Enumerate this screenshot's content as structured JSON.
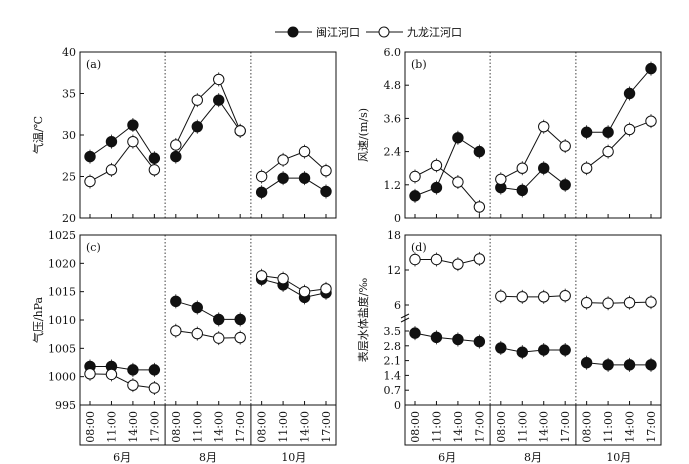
{
  "legend": [
    "闽江河口",
    "九龙江河口"
  ],
  "months": [
    "6月",
    "8月",
    "10月"
  ],
  "times": [
    "08:00",
    "11:00",
    "14:00",
    "17:00"
  ],
  "chart_data": [
    {
      "type": "line",
      "panel": "(a)",
      "ylabel": "气温/℃",
      "ylim": [
        20,
        40
      ],
      "yticks": [
        20,
        25,
        30,
        35,
        40
      ],
      "categories": [
        "6月 08:00",
        "6月 11:00",
        "6月 14:00",
        "6月 17:00",
        "8月 08:00",
        "8月 11:00",
        "8月 14:00",
        "8月 17:00",
        "10月 08:00",
        "10月 11:00",
        "10月 14:00",
        "10月 17:00"
      ],
      "series": [
        {
          "name": "闽江河口",
          "marker": "filled",
          "values": [
            27.4,
            29.2,
            31.2,
            27.2,
            27.4,
            31.0,
            34.2,
            30.5,
            23.1,
            24.8,
            24.8,
            23.2
          ]
        },
        {
          "name": "九龙江河口",
          "marker": "open",
          "values": [
            24.4,
            25.8,
            29.2,
            25.8,
            28.8,
            34.2,
            36.7,
            30.5,
            25.0,
            27.0,
            28.0,
            25.7
          ]
        }
      ]
    },
    {
      "type": "line",
      "panel": "(b)",
      "ylabel": "风速/(m/s)",
      "ylim": [
        0,
        6
      ],
      "yticks": [
        "0",
        "1.2",
        "2.4",
        "3.6",
        "4.8",
        "6.0"
      ],
      "categories": [
        "6月 08:00",
        "6月 11:00",
        "6月 14:00",
        "6月 17:00",
        "8月 08:00",
        "8月 11:00",
        "8月 14:00",
        "8月 17:00",
        "10月 08:00",
        "10月 11:00",
        "10月 14:00",
        "10月 17:00"
      ],
      "series": [
        {
          "name": "闽江河口",
          "marker": "filled",
          "values": [
            0.8,
            1.1,
            2.9,
            2.4,
            1.1,
            1.0,
            1.8,
            1.2,
            3.1,
            3.1,
            4.5,
            5.4
          ]
        },
        {
          "name": "九龙江河口",
          "marker": "open",
          "values": [
            1.5,
            1.9,
            1.3,
            0.4,
            1.4,
            1.8,
            3.3,
            2.6,
            1.8,
            2.4,
            3.2,
            3.5
          ]
        }
      ]
    },
    {
      "type": "line",
      "panel": "(c)",
      "ylabel": "气压/hPa",
      "ylim": [
        995,
        1025
      ],
      "yticks": [
        995,
        1000,
        1005,
        1010,
        1015,
        1020,
        1025
      ],
      "categories": [
        "6月 08:00",
        "6月 11:00",
        "6月 14:00",
        "6月 17:00",
        "8月 08:00",
        "8月 11:00",
        "8月 14:00",
        "8月 17:00",
        "10月 08:00",
        "10月 11:00",
        "10月 14:00",
        "10月 17:00"
      ],
      "series": [
        {
          "name": "闽江河口",
          "marker": "filled",
          "values": [
            1001.8,
            1001.8,
            1001.2,
            1001.2,
            1013.3,
            1012.2,
            1010.1,
            1010.1,
            1017.2,
            1016.2,
            1014.0,
            1014.8
          ]
        },
        {
          "name": "九龙江河口",
          "marker": "open",
          "values": [
            1000.5,
            1000.4,
            998.5,
            998.0,
            1008.1,
            1007.6,
            1006.8,
            1006.9,
            1017.8,
            1017.3,
            1015.0,
            1015.5
          ]
        }
      ]
    },
    {
      "type": "line",
      "panel": "(d)",
      "ylabel": "表层水体盐度/‰",
      "yaxis_break": true,
      "yticks_lower": [
        "0",
        "0.7",
        "1.4",
        "2.1",
        "2.8",
        "3.5"
      ],
      "yticks_upper": [
        "6",
        "12",
        "18"
      ],
      "categories": [
        "6月 08:00",
        "6月 11:00",
        "6月 14:00",
        "6月 17:00",
        "8月 08:00",
        "8月 11:00",
        "8月 14:00",
        "8月 17:00",
        "10月 08:00",
        "10月 11:00",
        "10月 14:00",
        "10月 17:00"
      ],
      "series": [
        {
          "name": "闽江河口",
          "marker": "filled",
          "values": [
            3.4,
            3.2,
            3.1,
            3.0,
            2.7,
            2.5,
            2.6,
            2.6,
            2.0,
            1.9,
            1.9,
            1.9
          ]
        },
        {
          "name": "九龙江河口",
          "marker": "open",
          "values": [
            13.8,
            13.8,
            13.0,
            13.9,
            7.5,
            7.4,
            7.4,
            7.6,
            6.4,
            6.3,
            6.4,
            6.5
          ]
        }
      ]
    }
  ]
}
